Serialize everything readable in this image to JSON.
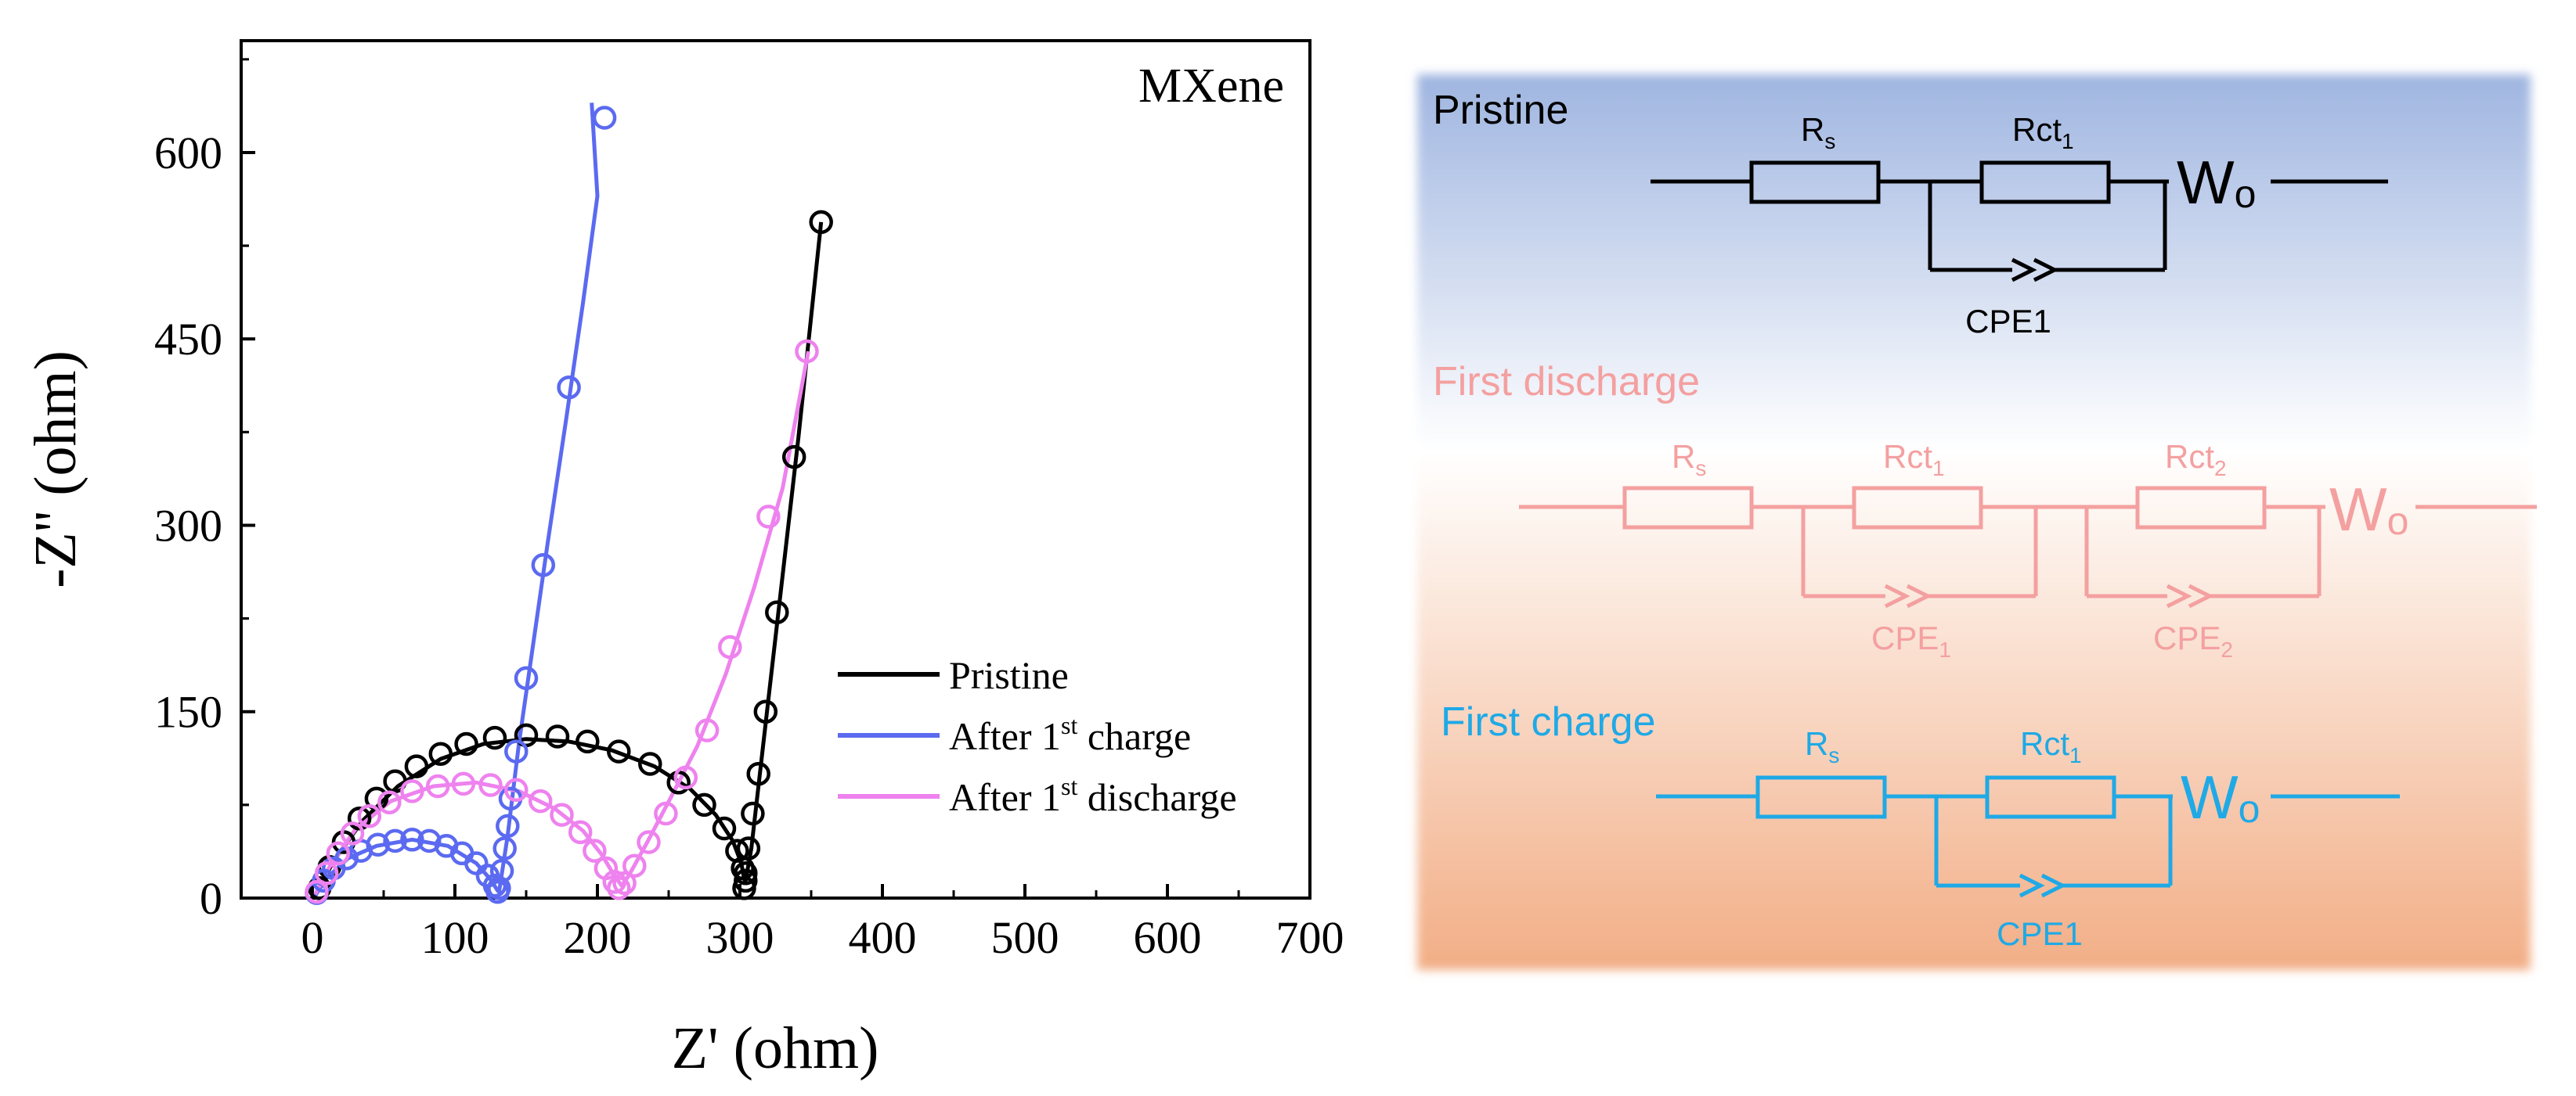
{
  "chart_data": {
    "type": "scatter",
    "title": "MXene",
    "xlabel": "Z' (ohm)",
    "ylabel": "-Z'' (ohm)",
    "xlim": [
      -50,
      700
    ],
    "ylim": [
      0,
      690
    ],
    "xticks": [
      0,
      100,
      200,
      300,
      400,
      500,
      600,
      700
    ],
    "yticks": [
      0,
      150,
      300,
      450,
      600
    ],
    "legend_position": "lower-right",
    "series": [
      {
        "name": "Pristine",
        "legend_parts": [
          "Pristine"
        ],
        "color": "#000000",
        "points": [
          [
            5,
            8
          ],
          [
            12,
            25
          ],
          [
            22,
            45
          ],
          [
            33,
            64
          ],
          [
            45,
            80
          ],
          [
            58,
            94
          ],
          [
            73,
            106
          ],
          [
            90,
            116
          ],
          [
            108,
            124
          ],
          [
            128,
            129
          ],
          [
            150,
            131
          ],
          [
            172,
            130
          ],
          [
            193,
            126
          ],
          [
            215,
            118
          ],
          [
            237,
            108
          ],
          [
            257,
            93
          ],
          [
            275,
            75
          ],
          [
            289,
            56
          ],
          [
            298,
            38
          ],
          [
            302,
            24
          ],
          [
            304,
            14
          ],
          [
            303,
            8
          ],
          [
            304,
            20
          ],
          [
            306,
            40
          ],
          [
            309,
            68
          ],
          [
            313,
            100
          ],
          [
            318,
            150
          ],
          [
            326,
            230
          ],
          [
            338,
            355
          ],
          [
            357,
            544
          ]
        ],
        "fit": [
          [
            2,
            2
          ],
          [
            15,
            30
          ],
          [
            35,
            62
          ],
          [
            60,
            90
          ],
          [
            90,
            112
          ],
          [
            120,
            124
          ],
          [
            150,
            128
          ],
          [
            180,
            126
          ],
          [
            210,
            119
          ],
          [
            240,
            106
          ],
          [
            265,
            88
          ],
          [
            283,
            67
          ],
          [
            295,
            46
          ],
          [
            301,
            28
          ],
          [
            303,
            15
          ],
          [
            304,
            14
          ],
          [
            308,
            40
          ],
          [
            314,
            100
          ],
          [
            321,
            170
          ],
          [
            330,
            260
          ],
          [
            341,
            370
          ],
          [
            357,
            544
          ]
        ]
      },
      {
        "name": "After 1st charge",
        "legend_parts": [
          "After 1",
          "st",
          " charge"
        ],
        "color": "#5b6af0",
        "points": [
          [
            3,
            4
          ],
          [
            8,
            14
          ],
          [
            15,
            24
          ],
          [
            24,
            32
          ],
          [
            34,
            38
          ],
          [
            46,
            43
          ],
          [
            58,
            46
          ],
          [
            70,
            47
          ],
          [
            82,
            46
          ],
          [
            94,
            42
          ],
          [
            105,
            36
          ],
          [
            115,
            28
          ],
          [
            123,
            18
          ],
          [
            128,
            10
          ],
          [
            130,
            5
          ],
          [
            131,
            8
          ],
          [
            133,
            22
          ],
          [
            135,
            40
          ],
          [
            137,
            58
          ],
          [
            139,
            80
          ],
          [
            143,
            118
          ],
          [
            150,
            177
          ],
          [
            162,
            268
          ],
          [
            180,
            411
          ],
          [
            205,
            628
          ]
        ],
        "fit": [
          [
            2,
            2
          ],
          [
            10,
            16
          ],
          [
            25,
            32
          ],
          [
            45,
            42
          ],
          [
            70,
            47
          ],
          [
            95,
            42
          ],
          [
            115,
            28
          ],
          [
            125,
            15
          ],
          [
            130,
            6
          ],
          [
            131,
            5
          ],
          [
            137,
            50
          ],
          [
            145,
            125
          ],
          [
            155,
            205
          ],
          [
            165,
            285
          ],
          [
            178,
            385
          ],
          [
            190,
            480
          ],
          [
            200,
            565
          ],
          [
            196,
            640
          ]
        ]
      },
      {
        "name": "After 1st discharge",
        "legend_parts": [
          "After 1",
          "st",
          " discharge"
        ],
        "color": "#ee82ee",
        "points": [
          [
            3,
            5
          ],
          [
            10,
            20
          ],
          [
            18,
            36
          ],
          [
            28,
            52
          ],
          [
            40,
            66
          ],
          [
            54,
            77
          ],
          [
            70,
            86
          ],
          [
            88,
            90
          ],
          [
            106,
            92
          ],
          [
            125,
            91
          ],
          [
            143,
            87
          ],
          [
            160,
            78
          ],
          [
            175,
            67
          ],
          [
            188,
            53
          ],
          [
            198,
            38
          ],
          [
            206,
            24
          ],
          [
            212,
            13
          ],
          [
            215,
            8
          ],
          [
            219,
            12
          ],
          [
            226,
            26
          ],
          [
            236,
            45
          ],
          [
            248,
            68
          ],
          [
            262,
            97
          ],
          [
            277,
            135
          ],
          [
            293,
            202
          ],
          [
            320,
            307
          ],
          [
            347,
            440
          ]
        ],
        "fit": [
          [
            2,
            3
          ],
          [
            12,
            25
          ],
          [
            30,
            55
          ],
          [
            55,
            78
          ],
          [
            85,
            90
          ],
          [
            115,
            93
          ],
          [
            145,
            86
          ],
          [
            170,
            72
          ],
          [
            190,
            54
          ],
          [
            203,
            35
          ],
          [
            212,
            18
          ],
          [
            217,
            10
          ],
          [
            222,
            18
          ],
          [
            235,
            45
          ],
          [
            252,
            82
          ],
          [
            270,
            122
          ],
          [
            290,
            180
          ],
          [
            310,
            250
          ],
          [
            330,
            330
          ],
          [
            348,
            440
          ]
        ]
      }
    ]
  },
  "circuits": {
    "pristine": {
      "title": "Pristine",
      "r1": "R",
      "r1_sub": "s",
      "r2": "Rct",
      "r2_sub": "1",
      "cpe": "CPE1",
      "w": "W",
      "w_sub": "o",
      "color": "#000000"
    },
    "first_discharge": {
      "title": "First discharge",
      "r1": "R",
      "r1_sub": "s",
      "r2": "Rct",
      "r2_sub": "1",
      "r3": "Rct",
      "r3_sub": "2",
      "cpe1": "CPE",
      "cpe1_sub": "1",
      "cpe2": "CPE",
      "cpe2_sub": "2",
      "w": "W",
      "w_sub": "o",
      "color": "#f4a0a0"
    },
    "first_charge": {
      "title": "First charge",
      "r1": "R",
      "r1_sub": "s",
      "r2": "Rct",
      "r2_sub": "1",
      "cpe": "CPE1",
      "w": "W",
      "w_sub": "o",
      "color": "#1fa9e6"
    },
    "background_top": "#9fb5e0",
    "background_bottom": "#f2ae86"
  }
}
